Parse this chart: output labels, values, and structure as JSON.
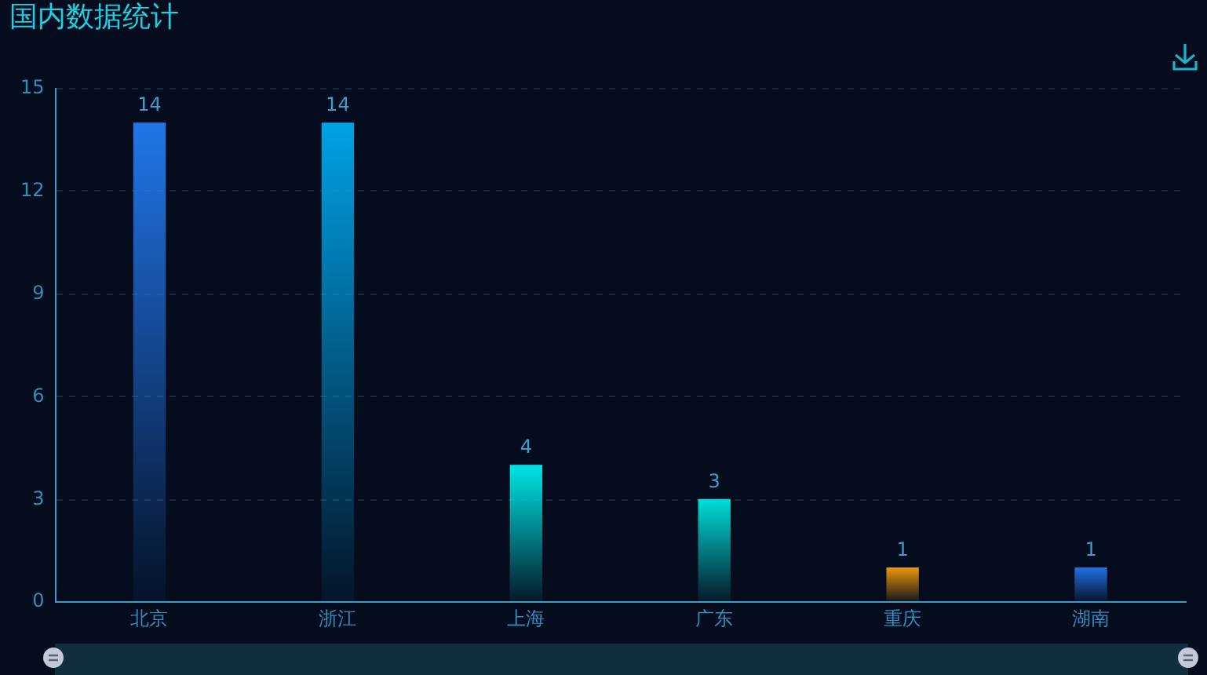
{
  "chart_data": {
    "type": "bar",
    "title": "国内数据统计",
    "categories": [
      "北京",
      "浙江",
      "上海",
      "广东",
      "重庆",
      "湖南"
    ],
    "values": [
      14,
      14,
      4,
      3,
      1,
      1
    ],
    "colors": [
      "#2176e8",
      "#00a2e6",
      "#00e5e5",
      "#00dcd8",
      "#e8960a",
      "#2070e0"
    ],
    "ylim": [
      0,
      15
    ],
    "yticks": [
      0,
      3,
      6,
      9,
      12,
      15
    ],
    "grid": "y",
    "data_labels": true
  }
}
